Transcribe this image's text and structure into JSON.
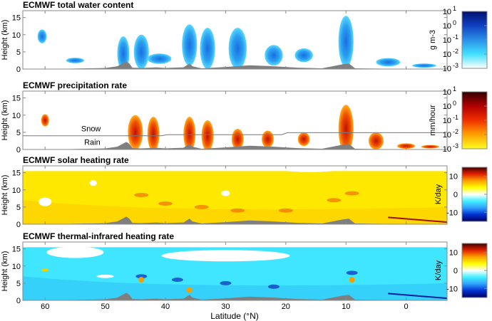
{
  "chart_data": {
    "type": "heatmap",
    "xlabel": "Latitude (°N)",
    "xlim": [
      63.7,
      -6.8
    ],
    "xticks": [
      "60",
      "50",
      "40",
      "30",
      "20",
      "10",
      "0"
    ],
    "xtick_values": [
      60,
      50,
      40,
      30,
      20,
      10,
      0
    ],
    "panels": [
      {
        "title": "ECMWF total water content",
        "ylabel": "Height (km)",
        "ylim": [
          0,
          17
        ],
        "yticks": [
          "0",
          "5",
          "10",
          "15"
        ],
        "colorbar": {
          "label": "g m-3",
          "label_base": "g m",
          "label_exp": "-3",
          "scale": "log",
          "ticks": [
            {
              "base": "10",
              "exp": "1"
            },
            {
              "base": "10",
              "exp": "0"
            },
            {
              "base": "10",
              "exp": "-1"
            },
            {
              "base": "10",
              "exp": "-2"
            },
            {
              "base": "10",
              "exp": "-3"
            }
          ],
          "colors": [
            "#ffffff",
            "#40e0ff",
            "#2a8fe8",
            "#1040c0",
            "#001070"
          ]
        }
      },
      {
        "title": "ECMWF precipitation rate",
        "ylabel": "Height (km)",
        "ylim": [
          0,
          17
        ],
        "yticks": [
          "0",
          "5",
          "10",
          "15"
        ],
        "annotations": [
          "Snow",
          "Rain"
        ],
        "colorbar": {
          "label": "mm/hour",
          "scale": "log",
          "ticks": [
            {
              "base": "10",
              "exp": "1"
            },
            {
              "base": "10",
              "exp": "0"
            },
            {
              "base": "10",
              "exp": "-1"
            },
            {
              "base": "10",
              "exp": "-2"
            },
            {
              "base": "10",
              "exp": "-3"
            }
          ],
          "colors": [
            "#ffff20",
            "#ffa000",
            "#f03000",
            "#b00000",
            "#300000"
          ]
        }
      },
      {
        "title": "ECMWF solar heating rate",
        "ylabel": "Height (km)",
        "ylim": [
          0,
          17
        ],
        "yticks": [
          "0",
          "5",
          "10",
          "15"
        ],
        "colorbar": {
          "label": "K/day",
          "scale": "linear",
          "ticks": [
            {
              "base": "10",
              "exp": ""
            },
            {
              "base": "0",
              "exp": ""
            },
            {
              "base": "-10",
              "exp": ""
            }
          ],
          "tick_values": [
            10,
            0,
            -10
          ],
          "range": [
            -15,
            15
          ],
          "colors": [
            "#000060",
            "#0030d0",
            "#30a0ff",
            "#40f0ff",
            "#ffffff",
            "#ffff00",
            "#ffa000",
            "#e02000",
            "#400000"
          ]
        }
      },
      {
        "title": "ECMWF thermal-infrared heating rate",
        "ylabel": "Height (km)",
        "ylim": [
          0,
          17
        ],
        "yticks": [
          "0",
          "5",
          "10",
          "15"
        ],
        "colorbar": {
          "label": "K/day",
          "scale": "linear",
          "ticks": [
            {
              "base": "10",
              "exp": ""
            },
            {
              "base": "0",
              "exp": ""
            },
            {
              "base": "-10",
              "exp": ""
            }
          ],
          "tick_values": [
            10,
            0,
            -10
          ],
          "range": [
            -15,
            15
          ],
          "colors": [
            "#000060",
            "#0030d0",
            "#30a0ff",
            "#40f0ff",
            "#ffffff",
            "#ffff00",
            "#ffa000",
            "#e02000",
            "#400000"
          ]
        }
      }
    ],
    "colors": {
      "terrain": "#7f7f7f",
      "snow_line": "#777777"
    }
  }
}
